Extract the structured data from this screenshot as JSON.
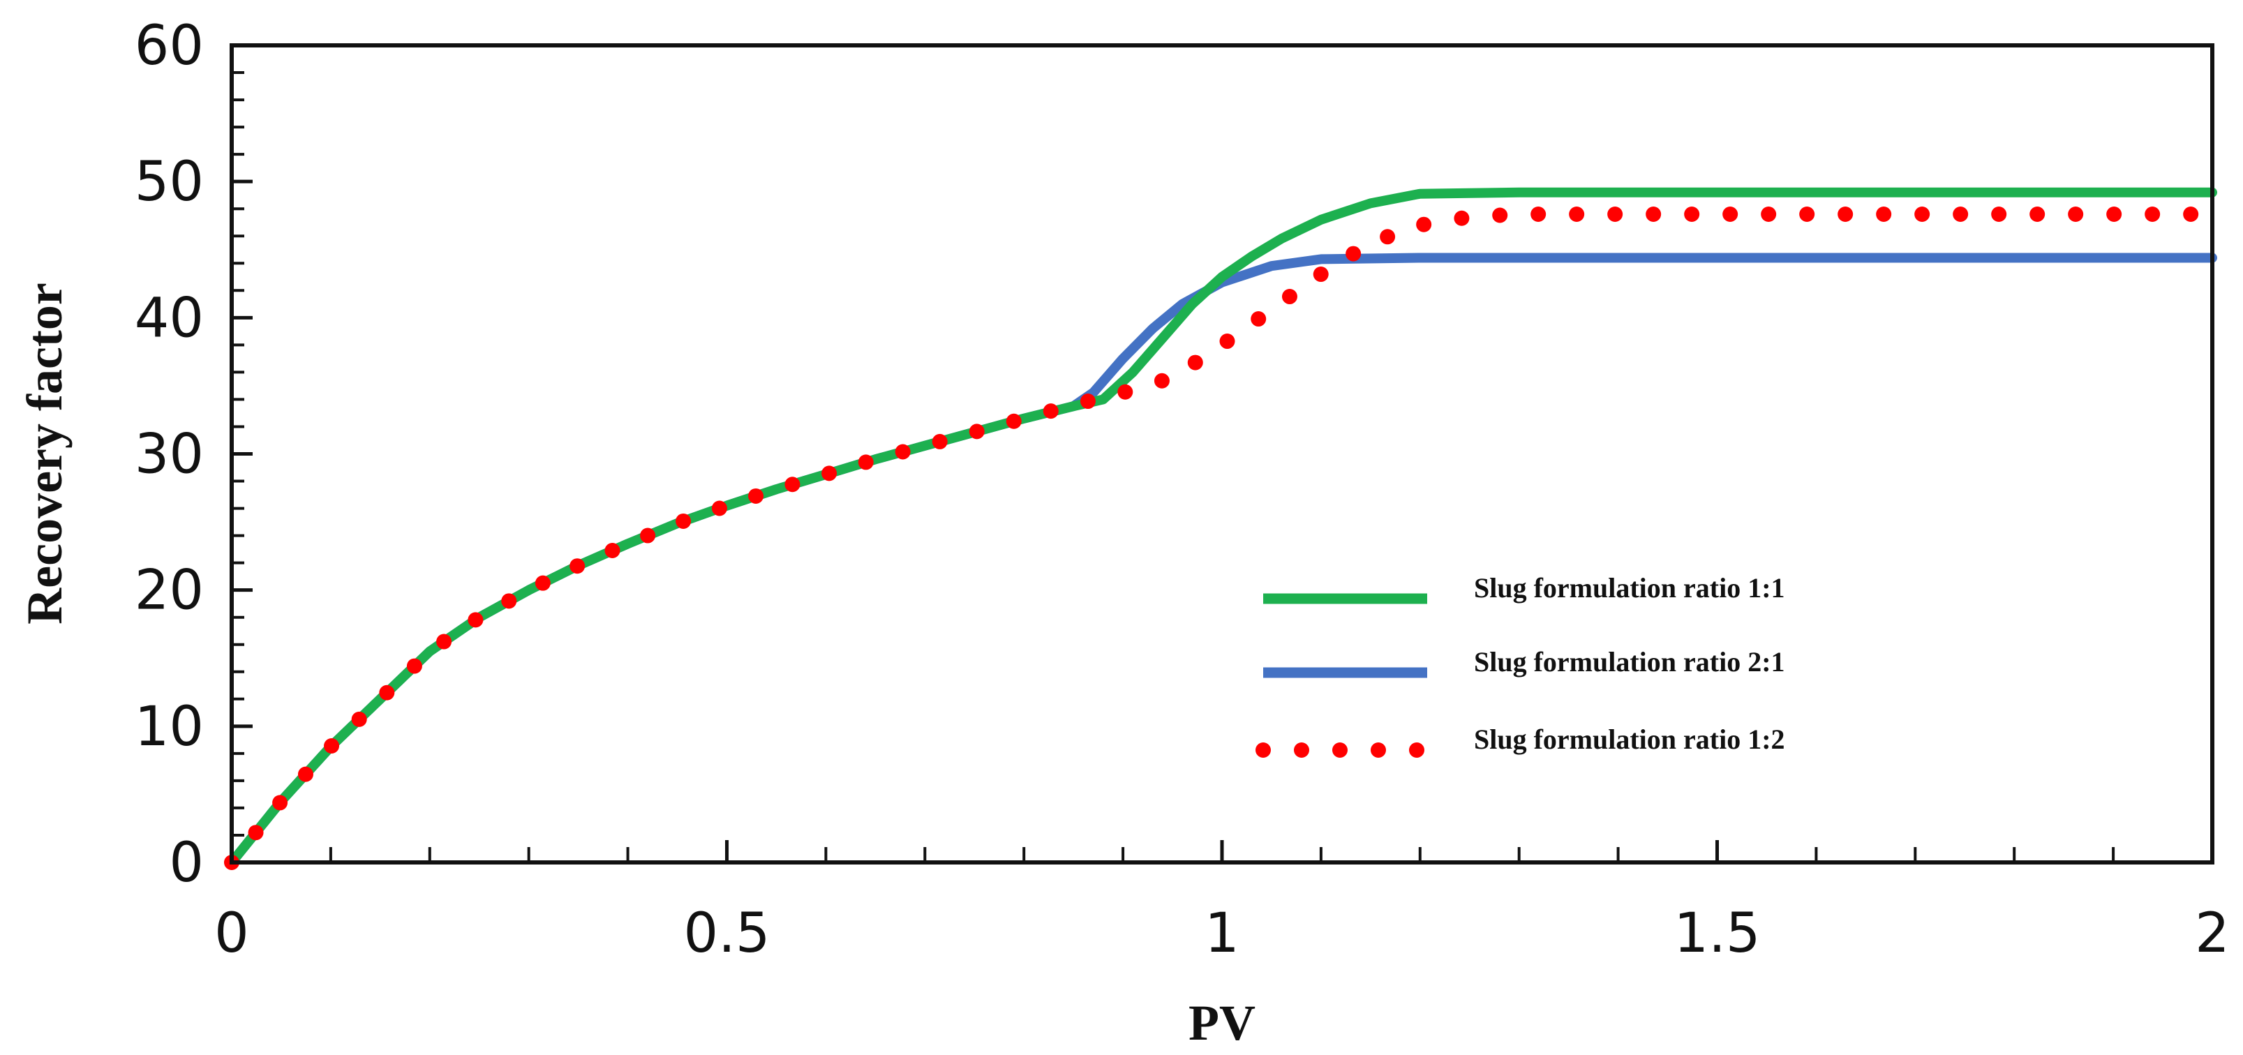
{
  "chart_data": {
    "type": "line",
    "title": "",
    "xlabel": "PV",
    "ylabel": "Recovery factor",
    "xlim": [
      0,
      2
    ],
    "ylim": [
      0,
      60
    ],
    "x_ticks": [
      0,
      0.5,
      1,
      1.5,
      2
    ],
    "x_tick_labels": [
      "0",
      "0.5",
      "1",
      "1.5",
      "2"
    ],
    "y_ticks": [
      0,
      10,
      20,
      30,
      40,
      50,
      60
    ],
    "y_tick_labels": [
      "0",
      "10",
      "20",
      "30",
      "40",
      "50",
      "60"
    ],
    "x_minor_step": 0.1,
    "y_minor_step": 2,
    "grid": false,
    "legend_position": "center-right",
    "series": [
      {
        "name": "Slug formulation ratio 1:1",
        "color": "#1db04f",
        "style": "solid",
        "points": [
          [
            0,
            0
          ],
          [
            0.05,
            4.5
          ],
          [
            0.1,
            8.5
          ],
          [
            0.15,
            12
          ],
          [
            0.2,
            15.5
          ],
          [
            0.25,
            18
          ],
          [
            0.3,
            20
          ],
          [
            0.35,
            21.8
          ],
          [
            0.4,
            23.4
          ],
          [
            0.45,
            24.9
          ],
          [
            0.5,
            26.2
          ],
          [
            0.55,
            27.4
          ],
          [
            0.6,
            28.5
          ],
          [
            0.65,
            29.6
          ],
          [
            0.7,
            30.6
          ],
          [
            0.75,
            31.6
          ],
          [
            0.8,
            32.6
          ],
          [
            0.85,
            33.5
          ],
          [
            0.88,
            34
          ],
          [
            0.91,
            36
          ],
          [
            0.94,
            38.5
          ],
          [
            0.97,
            41
          ],
          [
            1.0,
            43
          ],
          [
            1.03,
            44.5
          ],
          [
            1.06,
            45.8
          ],
          [
            1.1,
            47.2
          ],
          [
            1.15,
            48.4
          ],
          [
            1.2,
            49.1
          ],
          [
            1.3,
            49.2
          ],
          [
            1.5,
            49.2
          ],
          [
            1.8,
            49.2
          ],
          [
            2.0,
            49.2
          ]
        ]
      },
      {
        "name": "Slug formulation ratio 2:1",
        "color": "#4472c4",
        "style": "solid",
        "points": [
          [
            0,
            0
          ],
          [
            0.05,
            4.5
          ],
          [
            0.1,
            8.5
          ],
          [
            0.15,
            12
          ],
          [
            0.2,
            15.5
          ],
          [
            0.25,
            18
          ],
          [
            0.3,
            20
          ],
          [
            0.35,
            21.8
          ],
          [
            0.4,
            23.4
          ],
          [
            0.45,
            24.9
          ],
          [
            0.5,
            26.2
          ],
          [
            0.55,
            27.4
          ],
          [
            0.6,
            28.5
          ],
          [
            0.65,
            29.6
          ],
          [
            0.7,
            30.6
          ],
          [
            0.75,
            31.6
          ],
          [
            0.8,
            32.6
          ],
          [
            0.85,
            33.5
          ],
          [
            0.87,
            34.5
          ],
          [
            0.9,
            37
          ],
          [
            0.93,
            39.2
          ],
          [
            0.96,
            41
          ],
          [
            1.0,
            42.6
          ],
          [
            1.05,
            43.8
          ],
          [
            1.1,
            44.3
          ],
          [
            1.2,
            44.4
          ],
          [
            1.5,
            44.4
          ],
          [
            2.0,
            44.4
          ]
        ]
      },
      {
        "name": "Slug formulation ratio 1:2",
        "color": "#ff0000",
        "style": "dotted",
        "points": [
          [
            0,
            0
          ],
          [
            0.05,
            4.5
          ],
          [
            0.1,
            8.5
          ],
          [
            0.15,
            12
          ],
          [
            0.2,
            15.5
          ],
          [
            0.25,
            18
          ],
          [
            0.3,
            20
          ],
          [
            0.35,
            21.8
          ],
          [
            0.4,
            23.4
          ],
          [
            0.45,
            24.9
          ],
          [
            0.5,
            26.2
          ],
          [
            0.55,
            27.4
          ],
          [
            0.6,
            28.5
          ],
          [
            0.65,
            29.6
          ],
          [
            0.7,
            30.6
          ],
          [
            0.75,
            31.6
          ],
          [
            0.8,
            32.6
          ],
          [
            0.85,
            33.6
          ],
          [
            0.9,
            34.5
          ],
          [
            0.95,
            35.6
          ],
          [
            1.0,
            38
          ],
          [
            1.05,
            40.6
          ],
          [
            1.1,
            43.2
          ],
          [
            1.15,
            45.5
          ],
          [
            1.2,
            46.8
          ],
          [
            1.25,
            47.4
          ],
          [
            1.3,
            47.6
          ],
          [
            1.5,
            47.6
          ],
          [
            2.0,
            47.6
          ]
        ]
      }
    ]
  }
}
